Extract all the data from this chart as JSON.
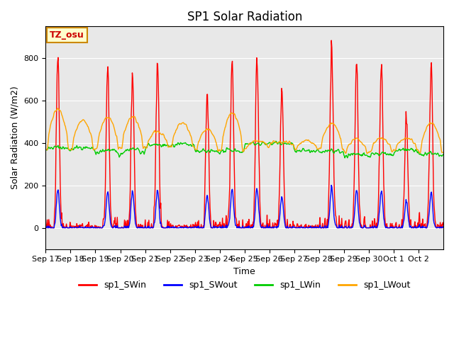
{
  "title": "SP1 Solar Radiation",
  "xlabel": "Time",
  "ylabel": "Solar Radiation (W/m2)",
  "ylim": [
    -100,
    950
  ],
  "bg_color": "#e8e8e8",
  "fig_color": "#ffffff",
  "grid_color": "#ffffff",
  "annotation_text": "TZ_osu",
  "annotation_bg": "#ffffcc",
  "annotation_border": "#cc8800",
  "annotation_text_color": "#cc0000",
  "x_tick_labels": [
    "Sep 17",
    "Sep 18",
    "Sep 19",
    "Sep 20",
    "Sep 21",
    "Sep 22",
    "Sep 23",
    "Sep 24",
    "Sep 25",
    "Sep 26",
    "Sep 27",
    "Sep 28",
    "Sep 29",
    "Sep 30",
    "Oct 1",
    "Oct 2"
  ],
  "series": {
    "sp1_SWin": {
      "color": "#ff0000",
      "linewidth": 1.0
    },
    "sp1_SWout": {
      "color": "#0000ff",
      "linewidth": 1.0
    },
    "sp1_LWin": {
      "color": "#00cc00",
      "linewidth": 1.0
    },
    "sp1_LWout": {
      "color": "#ffa500",
      "linewidth": 1.0
    }
  },
  "n_days": 16,
  "pts_per_day": 48,
  "SWin_peaks": [
    830,
    0,
    760,
    730,
    790,
    0,
    640,
    800,
    800,
    650,
    0,
    880,
    790,
    800,
    535,
    775
  ],
  "SWout_peaks": [
    185,
    0,
    170,
    175,
    180,
    0,
    155,
    185,
    185,
    145,
    0,
    200,
    180,
    180,
    130,
    168
  ],
  "LWin_base": [
    370,
    370,
    345,
    350,
    385,
    385,
    355,
    355,
    395,
    395,
    360,
    360,
    335,
    340,
    360,
    345
  ],
  "LWin_day": [
    390,
    390,
    390,
    395,
    400,
    400,
    370,
    380,
    400,
    400,
    365,
    370,
    360,
    365,
    380,
    360
  ],
  "LWout_base": [
    370,
    370,
    370,
    375,
    380,
    380,
    365,
    365,
    380,
    395,
    370,
    375,
    355,
    360,
    370,
    355
  ],
  "LWout_peaks": [
    580,
    520,
    540,
    540,
    465,
    510,
    475,
    560,
    415,
    405,
    415,
    505,
    425,
    430,
    430,
    510
  ]
}
